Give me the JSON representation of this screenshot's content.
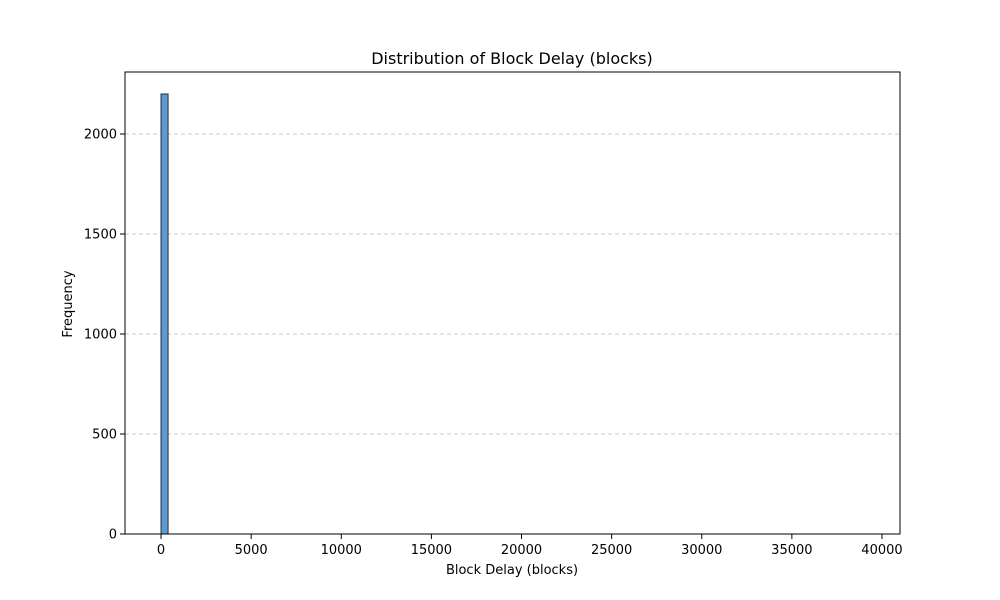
{
  "chart_data": {
    "type": "bar",
    "title": "Distribution of Block Delay (blocks)",
    "xlabel": "Block Delay (blocks)",
    "ylabel": "Frequency",
    "xlim": [
      -2000,
      41000
    ],
    "ylim": [
      0,
      2310
    ],
    "x_ticks": [
      0,
      5000,
      10000,
      15000,
      20000,
      25000,
      30000,
      35000,
      40000
    ],
    "y_ticks": [
      0,
      500,
      1000,
      1500,
      2000
    ],
    "grid": {
      "y": true,
      "x": false,
      "style": "dashed"
    },
    "bar_color": "#5b9bd5",
    "bar_edge_color": "#2c2c2c",
    "bins": [
      {
        "x0": 0,
        "x1": 390,
        "value": 2200
      }
    ]
  }
}
